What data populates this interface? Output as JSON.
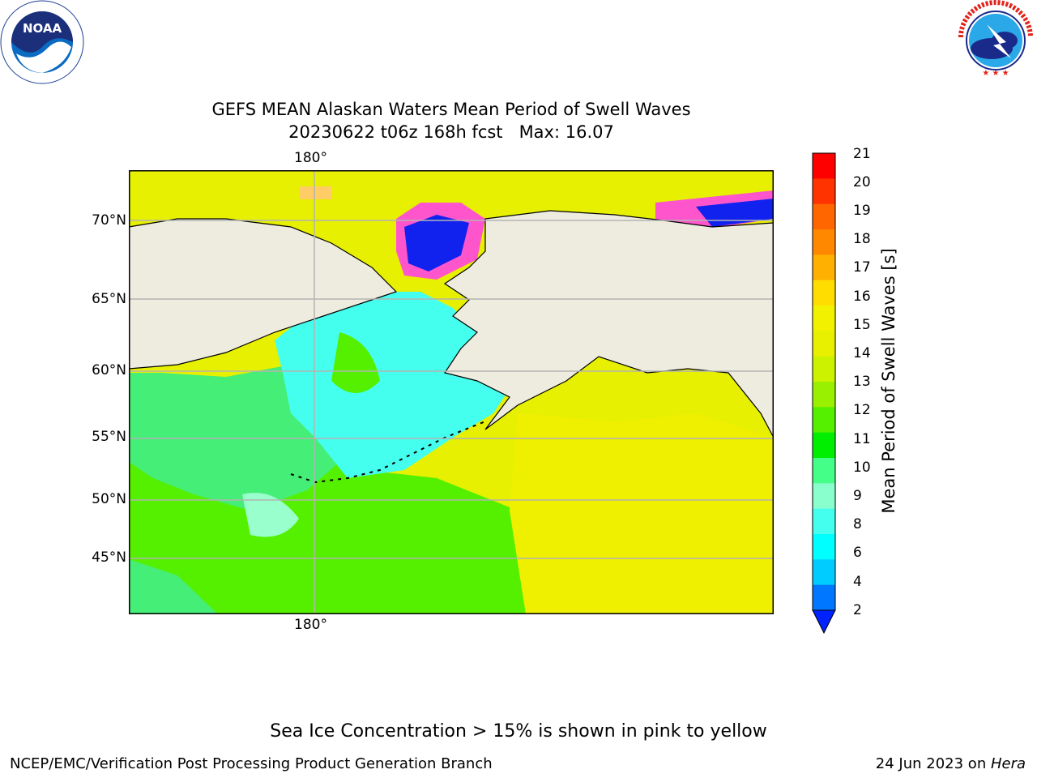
{
  "title_line1": "GEFS MEAN Alaskan Waters Mean Period of Swell Waves",
  "title_line2": "20230622 t06z 168h fcst   Max: 16.07",
  "map": {
    "lat_labels": [
      "70°N",
      "65°N",
      "60°N",
      "55°N",
      "50°N",
      "45°N"
    ],
    "lon_top": "180°",
    "lon_bottom": "180°",
    "land_color": "#eeecdf",
    "grid_color": "#b3b3b3"
  },
  "colorbar": {
    "label": "Mean Period of Swell Waves [s]",
    "ticks": [
      "21",
      "20",
      "19",
      "18",
      "17",
      "16",
      "15",
      "14",
      "13",
      "12",
      "11",
      "10",
      "9",
      "8",
      "6",
      "4",
      "2"
    ],
    "colors": [
      "#ff0000",
      "#ff3300",
      "#ff6600",
      "#ff8800",
      "#ffb000",
      "#ffdd00",
      "#f2f200",
      "#e8f000",
      "#ccf200",
      "#99f000",
      "#55f000",
      "#00ee00",
      "#44ff88",
      "#88ffcc",
      "#44ffee",
      "#00ffff",
      "#00ccff",
      "#0077ff"
    ],
    "extend_color": "#0022ff"
  },
  "seaice_note": "Sea Ice Concentration > 15% is shown in pink to yellow",
  "footer_left": "NCEP/EMC/Verification Post Processing Product Generation Branch",
  "footer_date": "24 Jun 2023 on ",
  "footer_machine": "Hera",
  "logos": {
    "noaa_text": "NOAA",
    "noaa_ring": "NATIONAL OCEANIC AND ATMOSPHERIC ADMINISTRATION · U.S. DEPARTMENT OF COMMERCE",
    "nws_ring": "NATIONAL WEATHER SERVICE"
  }
}
